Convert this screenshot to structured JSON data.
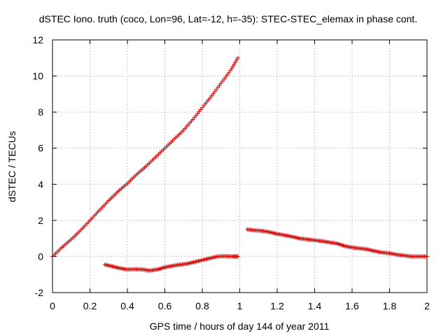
{
  "chart_data": {
    "type": "scatter",
    "title": "dSTEC Iono. truth (coco, Lon=96, Lat=-12, h=-35): STEC-STEC_elemax in phase cont.",
    "xlabel": "GPS time / hours of day 144 of year 2011",
    "ylabel": "dSTEC  / TECUs",
    "xlim": [
      0,
      2
    ],
    "ylim": [
      -2,
      12
    ],
    "xticks": [
      0,
      0.2,
      0.4,
      0.6,
      0.8,
      1,
      1.2,
      1.4,
      1.6,
      1.8,
      2
    ],
    "xtick_labels": [
      "0",
      "0.2",
      "0.4",
      "0.6",
      "0.8",
      "1",
      "1.2",
      "1.4",
      "1.6",
      "1.8",
      "2"
    ],
    "yticks": [
      -2,
      0,
      2,
      4,
      6,
      8,
      10,
      12
    ],
    "ytick_labels": [
      "-2",
      "0",
      "2",
      "4",
      "6",
      "8",
      "10",
      "12"
    ],
    "grid": true,
    "marker": "+",
    "color": "#d00000",
    "series": [
      {
        "x": [
          0.0,
          0.05,
          0.1,
          0.15,
          0.2,
          0.25,
          0.3,
          0.35,
          0.4,
          0.45,
          0.5,
          0.55,
          0.6,
          0.65,
          0.7,
          0.75,
          0.8,
          0.85,
          0.9,
          0.95,
          0.99
        ],
        "y": [
          0.0,
          0.5,
          0.95,
          1.45,
          2.0,
          2.55,
          3.1,
          3.6,
          4.05,
          4.55,
          5.0,
          5.5,
          6.0,
          6.5,
          7.0,
          7.6,
          8.25,
          8.9,
          9.6,
          10.3,
          11.0
        ]
      },
      {
        "x": [
          0.28,
          0.32,
          0.36,
          0.4,
          0.44,
          0.48,
          0.52,
          0.56,
          0.6,
          0.64,
          0.68,
          0.72,
          0.76,
          0.8,
          0.84,
          0.88,
          0.92,
          0.96,
          0.99
        ],
        "y": [
          -0.45,
          -0.55,
          -0.65,
          -0.72,
          -0.7,
          -0.72,
          -0.78,
          -0.72,
          -0.6,
          -0.52,
          -0.45,
          -0.4,
          -0.3,
          -0.2,
          -0.1,
          0.0,
          0.02,
          0.0,
          0.0
        ]
      },
      {
        "x": [
          1.04,
          1.08,
          1.12,
          1.16,
          1.2,
          1.24,
          1.28,
          1.32,
          1.36,
          1.4,
          1.44,
          1.48,
          1.52,
          1.56,
          1.6,
          1.64,
          1.68,
          1.72,
          1.76,
          1.8,
          1.84,
          1.88,
          1.92,
          1.96,
          2.0
        ],
        "y": [
          1.5,
          1.45,
          1.42,
          1.35,
          1.25,
          1.18,
          1.1,
          1.0,
          0.95,
          0.9,
          0.85,
          0.78,
          0.72,
          0.58,
          0.5,
          0.45,
          0.4,
          0.3,
          0.22,
          0.18,
          0.1,
          0.05,
          0.0,
          0.0,
          0.0
        ]
      }
    ]
  }
}
